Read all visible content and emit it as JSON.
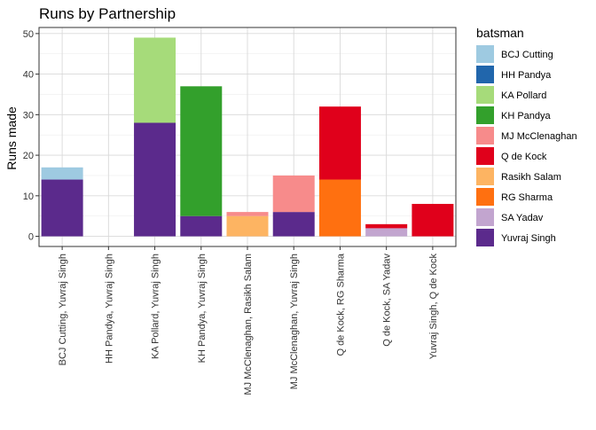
{
  "chart_data": {
    "type": "bar",
    "stacked": true,
    "title": "Runs by Partnership",
    "xlabel": "",
    "ylabel": "Runs made",
    "ylim": [
      -2.5,
      51.5
    ],
    "yticks": [
      0,
      10,
      20,
      30,
      40,
      50
    ],
    "grid": true,
    "legend_position": "right",
    "legend_title": "batsman",
    "categories": [
      "BCJ Cutting, Yuvraj Singh",
      "HH Pandya, Yuvraj Singh",
      "KA Pollard, Yuvraj Singh",
      "KH Pandya, Yuvraj Singh",
      "MJ McClenaghan, Rasikh Salam",
      "MJ McClenaghan, Yuvraj Singh",
      "Q de Kock, RG Sharma",
      "Q de Kock, SA Yadav",
      "Yuvraj Singh, Q de Kock"
    ],
    "series": [
      {
        "name": "BCJ Cutting",
        "color": "#9ECAE1",
        "values": [
          3,
          0,
          0,
          0,
          0,
          0,
          0,
          0,
          0
        ]
      },
      {
        "name": "HH Pandya",
        "color": "#2166AC",
        "values": [
          0,
          0,
          0,
          0,
          0,
          0,
          0,
          0,
          0
        ]
      },
      {
        "name": "KA Pollard",
        "color": "#A6DB7A",
        "values": [
          0,
          0,
          21,
          0,
          0,
          0,
          0,
          0,
          0
        ]
      },
      {
        "name": "KH Pandya",
        "color": "#33A02C",
        "values": [
          0,
          0,
          0,
          32,
          0,
          0,
          0,
          0,
          0
        ]
      },
      {
        "name": "MJ McClenaghan",
        "color": "#F78B8B",
        "values": [
          0,
          0,
          0,
          0,
          1,
          9,
          0,
          0,
          0
        ]
      },
      {
        "name": "Q de Kock",
        "color": "#E0001B",
        "values": [
          0,
          0,
          0,
          0,
          0,
          0,
          18,
          1,
          8
        ]
      },
      {
        "name": "Rasikh Salam",
        "color": "#FDB462",
        "values": [
          0,
          0,
          0,
          0,
          5,
          0,
          0,
          0,
          0
        ]
      },
      {
        "name": "RG Sharma",
        "color": "#FF7010",
        "values": [
          0,
          0,
          0,
          0,
          0,
          0,
          14,
          0,
          0
        ]
      },
      {
        "name": "SA Yadav",
        "color": "#C2A5CF",
        "values": [
          0,
          0,
          0,
          0,
          0,
          0,
          0,
          2,
          0
        ]
      },
      {
        "name": "Yuvraj Singh",
        "color": "#5B2A8C",
        "values": [
          14,
          0,
          28,
          5,
          0,
          6,
          0,
          0,
          0
        ]
      }
    ],
    "stack_order": [
      [
        "Yuvraj Singh",
        "BCJ Cutting"
      ],
      [
        "Yuvraj Singh",
        "HH Pandya"
      ],
      [
        "Yuvraj Singh",
        "KA Pollard"
      ],
      [
        "Yuvraj Singh",
        "KH Pandya"
      ],
      [
        "Rasikh Salam",
        "MJ McClenaghan"
      ],
      [
        "Yuvraj Singh",
        "MJ McClenaghan"
      ],
      [
        "RG Sharma",
        "Q de Kock"
      ],
      [
        "SA Yadav",
        "Q de Kock"
      ],
      [
        "Q de Kock",
        "Yuvraj Singh"
      ]
    ]
  }
}
